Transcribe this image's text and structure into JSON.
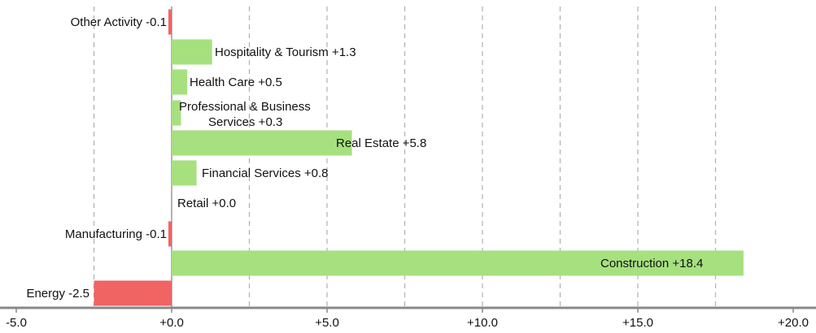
{
  "chart_data": {
    "type": "bar",
    "orientation": "horizontal",
    "title": "",
    "xlabel": "",
    "ylabel": "",
    "xlim": [
      -5.0,
      20.0
    ],
    "x_ticks": [
      -5.0,
      0.0,
      5.0,
      10.0,
      15.0,
      20.0
    ],
    "x_tick_labels": [
      "-5.0",
      "+0.0",
      "+5.0",
      "+10.0",
      "+15.0",
      "+20.0"
    ],
    "grid": "vertical dashed lines every 2.5",
    "legend": "none",
    "colors": {
      "positive": "#a6e07f",
      "negative": "#f06464",
      "grid": "#b0b0b0",
      "axis": "#888888"
    },
    "categories": [
      "Other Activity",
      "Hospitality & Tourism",
      "Health Care",
      "Professional & Business Services",
      "Real Estate",
      "Financial Services",
      "Retail",
      "Manufacturing",
      "Construction",
      "Energy"
    ],
    "values": [
      -0.1,
      1.3,
      0.5,
      0.3,
      5.8,
      0.8,
      0.0,
      -0.1,
      18.4,
      -2.5
    ],
    "data_labels": [
      [
        "Other Activity -0.1"
      ],
      [
        "Hospitality & Tourism +1.3"
      ],
      [
        "Health Care +0.5"
      ],
      [
        "Professional & Business",
        "Services +0.3"
      ],
      [
        "Real Estate +5.8"
      ],
      [
        "Financial Services +0.8"
      ],
      [
        "Retail +0.0"
      ],
      [
        "Manufacturing -0.1"
      ],
      [
        "Construction +18.4"
      ],
      [
        "Energy -2.5"
      ]
    ]
  }
}
